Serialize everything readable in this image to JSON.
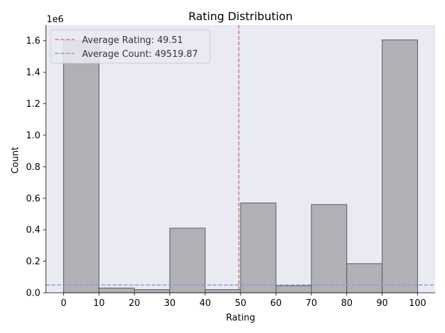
{
  "chart_data": {
    "type": "bar",
    "title": "Rating Distribution",
    "xlabel": "Rating",
    "ylabel": "Count",
    "y_scale_label": "1e6",
    "bins": [
      {
        "start": 0,
        "end": 10,
        "count": 1600000
      },
      {
        "start": 10,
        "end": 20,
        "count": 30000
      },
      {
        "start": 20,
        "end": 30,
        "count": 20000
      },
      {
        "start": 30,
        "end": 40,
        "count": 410000
      },
      {
        "start": 40,
        "end": 50,
        "count": 20000
      },
      {
        "start": 50,
        "end": 60,
        "count": 570000
      },
      {
        "start": 60,
        "end": 70,
        "count": 45000
      },
      {
        "start": 70,
        "end": 80,
        "count": 560000
      },
      {
        "start": 80,
        "end": 90,
        "count": 185000
      },
      {
        "start": 90,
        "end": 100,
        "count": 1605000
      }
    ],
    "xlim": [
      -5,
      105
    ],
    "ylim": [
      0,
      1700000
    ],
    "x_ticks": [
      0,
      10,
      20,
      30,
      40,
      50,
      60,
      70,
      80,
      90,
      100
    ],
    "y_ticks": [
      0,
      200000,
      400000,
      600000,
      800000,
      1000000,
      1200000,
      1400000,
      1600000
    ],
    "y_tick_labels": [
      "0.0",
      "0.2",
      "0.4",
      "0.6",
      "0.8",
      "1.0",
      "1.2",
      "1.4",
      "1.6"
    ],
    "reference_lines": [
      {
        "orientation": "vertical",
        "value": 49.51,
        "label": "Average Rating: 49.51",
        "color": "#d9777e"
      },
      {
        "orientation": "horizontal",
        "value": 49519.87,
        "label": "Average Count: 49519.87",
        "color": "#7f9fd4"
      }
    ],
    "legend_position": "top-left",
    "colors": {
      "bar_fill": "#b2b0b7",
      "bar_edge": "#58575c",
      "plot_background": "#eaeaf2"
    }
  }
}
